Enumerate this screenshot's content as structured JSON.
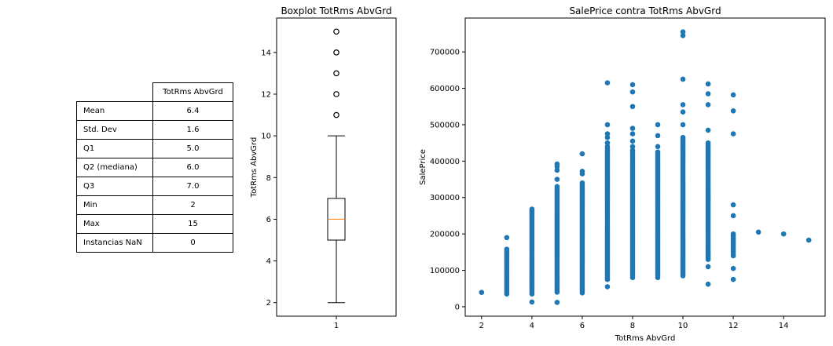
{
  "table": {
    "column_header": "TotRms AbvGrd",
    "rows": [
      {
        "label": "Mean",
        "value": "6.4"
      },
      {
        "label": "Std. Dev",
        "value": "1.6"
      },
      {
        "label": "Q1",
        "value": "5.0"
      },
      {
        "label": "Q2 (mediana)",
        "value": "6.0"
      },
      {
        "label": "Q3",
        "value": "7.0"
      },
      {
        "label": "Min",
        "value": "2"
      },
      {
        "label": "Max",
        "value": "15"
      },
      {
        "label": "Instancias NaN",
        "value": "0"
      }
    ]
  },
  "chart_data": [
    {
      "type": "box",
      "title": "Boxplot TotRms AbvGrd",
      "xlabel": "",
      "ylabel": "TotRms AbvGrd",
      "x_ticks": [
        "1"
      ],
      "y_ticks": [
        2,
        4,
        6,
        8,
        10,
        12,
        14
      ],
      "ylim": [
        1.35,
        15.65
      ],
      "box": {
        "whisker_low": 2,
        "q1": 5,
        "median": 6,
        "q3": 7,
        "whisker_high": 10
      },
      "outliers": [
        11,
        12,
        13,
        14,
        15
      ],
      "colors": {
        "median": "#ff7f0e",
        "box": "#000000"
      }
    },
    {
      "type": "scatter",
      "title": "SalePrice contra TotRms AbvGrd",
      "xlabel": "TotRms AbvGrd",
      "ylabel": "SalePrice",
      "x_ticks": [
        2,
        4,
        6,
        8,
        10,
        12,
        14
      ],
      "y_ticks": [
        0,
        100000,
        200000,
        300000,
        400000,
        500000,
        600000,
        700000
      ],
      "xlim": [
        1.35,
        15.65
      ],
      "ylim": [
        -26000,
        793000
      ],
      "color": "#1f77b4",
      "columns": [
        {
          "x": 2,
          "range": [
            39300,
            39300
          ],
          "extras": []
        },
        {
          "x": 3,
          "range": [
            35000,
            158000
          ],
          "extras": [
            190000
          ]
        },
        {
          "x": 4,
          "range": [
            35000,
            268000
          ],
          "extras": [
            13000
          ]
        },
        {
          "x": 5,
          "range": [
            40000,
            330000
          ],
          "extras": [
            12000,
            350000,
            375000,
            385000,
            392000
          ]
        },
        {
          "x": 6,
          "range": [
            38000,
            340000
          ],
          "extras": [
            365000,
            372000,
            420000
          ]
        },
        {
          "x": 7,
          "range": [
            75000,
            440000
          ],
          "extras": [
            55000,
            450000,
            465000,
            475000,
            500000,
            615000
          ]
        },
        {
          "x": 8,
          "range": [
            80000,
            430000
          ],
          "extras": [
            440000,
            455000,
            475000,
            490000,
            550000,
            590000,
            610000
          ]
        },
        {
          "x": 9,
          "range": [
            80000,
            425000
          ],
          "extras": [
            440000,
            470000,
            500000
          ]
        },
        {
          "x": 10,
          "range": [
            85000,
            465000
          ],
          "extras": [
            500000,
            535000,
            555000,
            625000,
            745000,
            755000
          ]
        },
        {
          "x": 11,
          "range": [
            130000,
            450000
          ],
          "extras": [
            62000,
            110000,
            485000,
            555000,
            585000,
            612000
          ]
        },
        {
          "x": 12,
          "range": [
            140000,
            200000
          ],
          "extras": [
            75000,
            105000,
            250000,
            280000,
            475000,
            538000,
            582000
          ]
        },
        {
          "x": 13,
          "range": [
            205000,
            205000
          ],
          "extras": []
        },
        {
          "x": 14,
          "range": [
            200000,
            200000
          ],
          "extras": []
        },
        {
          "x": 15,
          "range": [
            183000,
            183000
          ],
          "extras": []
        }
      ]
    }
  ]
}
